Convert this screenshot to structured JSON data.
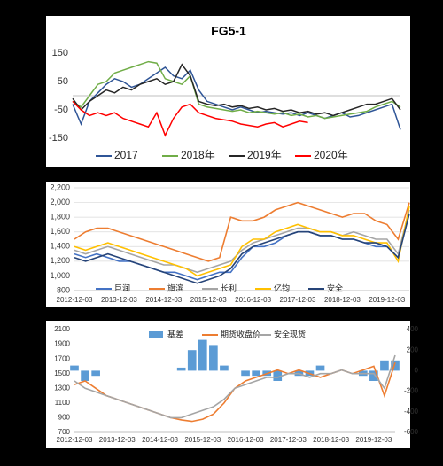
{
  "chart_data": [
    {
      "type": "line",
      "title": "FG5-1",
      "categories": [
        null,
        null,
        null,
        null,
        null,
        null,
        null,
        null,
        null,
        null,
        null,
        null,
        null,
        null,
        null,
        null,
        null,
        null,
        null,
        null,
        null,
        null,
        null,
        null,
        null,
        null,
        null,
        null,
        null,
        null,
        null,
        null,
        null,
        null,
        null,
        null,
        null,
        null,
        null,
        null
      ],
      "ylim": [
        -175,
        175
      ],
      "yticks": [
        150,
        50,
        -50,
        -150
      ],
      "grid": false,
      "legend": "bottom",
      "series": [
        {
          "name": "2017",
          "color": "#2f5597",
          "values": [
            -30,
            -100,
            -20,
            10,
            40,
            60,
            50,
            30,
            40,
            60,
            80,
            100,
            70,
            60,
            90,
            20,
            -20,
            -30,
            -40,
            -50,
            -40,
            -50,
            -60,
            -55,
            -60,
            -65,
            -60,
            -70,
            -60,
            -70,
            -80,
            -70,
            -60,
            -75,
            -70,
            -60,
            -50,
            -40,
            -30,
            -120
          ]
        },
        {
          "name": "2018年",
          "color": "#70ad47",
          "values": [
            -20,
            -40,
            0,
            40,
            50,
            80,
            90,
            100,
            110,
            120,
            115,
            60,
            50,
            40,
            70,
            -30,
            -40,
            -45,
            -50,
            -55,
            -50,
            -60,
            -55,
            -60,
            -65,
            -60,
            -70,
            -65,
            -75,
            -70,
            -80,
            -75,
            -70,
            -65,
            -60,
            -55,
            -40,
            -30,
            -20,
            -40
          ]
        },
        {
          "name": "2019年",
          "color": "#262626",
          "values": [
            -10,
            -50,
            -20,
            0,
            20,
            10,
            30,
            20,
            40,
            50,
            60,
            40,
            50,
            110,
            70,
            -20,
            -30,
            -35,
            -30,
            -40,
            -35,
            -45,
            -40,
            -50,
            -45,
            -55,
            -50,
            -60,
            -55,
            -65,
            -60,
            -70,
            -60,
            -50,
            -40,
            -30,
            -30,
            -20,
            -10,
            -50
          ]
        },
        {
          "name": "2020年",
          "color": "#ff0000",
          "values": [
            -20,
            -50,
            -70,
            -60,
            -70,
            -60,
            -80,
            -90,
            -100,
            -110,
            -60,
            -140,
            -80,
            -40,
            -30,
            -60,
            -70,
            -80,
            -85,
            -90,
            -100,
            -105,
            -110,
            -100,
            -95,
            -110,
            -100,
            -90,
            -95,
            null,
            null,
            null,
            null,
            null,
            null,
            null,
            null,
            null,
            null,
            null
          ]
        }
      ]
    },
    {
      "type": "line",
      "categories": [
        "2012-12-03",
        null,
        null,
        null,
        "2013-12-03",
        null,
        null,
        null,
        "2014-12-03",
        null,
        null,
        null,
        "2015-12-03",
        null,
        null,
        null,
        "2016-12-03",
        null,
        null,
        null,
        "2017-12-03",
        null,
        null,
        null,
        "2018-12-03",
        null,
        null,
        null,
        "2019-12-03",
        null,
        null
      ],
      "ylim": [
        800,
        2200
      ],
      "yticks": [
        {
          "value": 800,
          "label": "800"
        },
        {
          "value": 1000,
          "label": "1,000"
        },
        {
          "value": 1200,
          "label": "1,200"
        },
        {
          "value": 1400,
          "label": "1,400"
        },
        {
          "value": 1600,
          "label": "1,600"
        },
        {
          "value": 1800,
          "label": "1,800"
        },
        {
          "value": 2000,
          "label": "2,000"
        },
        {
          "value": 2200,
          "label": "2,200"
        }
      ],
      "grid": true,
      "legend": "bottom",
      "series": [
        {
          "name": "巨润",
          "color": "#4472c4",
          "values": [
            1300,
            1250,
            1300,
            1250,
            1200,
            1200,
            1150,
            1100,
            1050,
            1050,
            1000,
            950,
            1000,
            1050,
            1050,
            1250,
            1400,
            1400,
            1450,
            1550,
            1600,
            1600,
            1550,
            1550,
            1500,
            1500,
            1450,
            1400,
            1400,
            1250,
            1850
          ]
        },
        {
          "name": "旗滨",
          "color": "#ed7d31",
          "values": [
            1500,
            1600,
            1650,
            1650,
            1600,
            1550,
            1500,
            1450,
            1400,
            1350,
            1300,
            1250,
            1200,
            1250,
            1800,
            1750,
            1750,
            1800,
            1900,
            1950,
            2000,
            1950,
            1900,
            1850,
            1800,
            1850,
            1850,
            1750,
            1700,
            1500,
            2000
          ]
        },
        {
          "name": "长利",
          "color": "#a5a5a5",
          "values": [
            1350,
            1300,
            1350,
            1400,
            1350,
            1300,
            1250,
            1200,
            1150,
            1150,
            1100,
            1050,
            1100,
            1150,
            1200,
            1350,
            1450,
            1500,
            1550,
            1600,
            1650,
            1650,
            1600,
            1600,
            1550,
            1600,
            1550,
            1500,
            1500,
            1300,
            1900
          ]
        },
        {
          "name": "亿钧",
          "color": "#ffc000",
          "values": [
            1400,
            1350,
            1400,
            1450,
            1400,
            1350,
            1300,
            1250,
            1200,
            1150,
            1100,
            1000,
            1050,
            1100,
            1150,
            1400,
            1500,
            1500,
            1600,
            1650,
            1700,
            1650,
            1600,
            1600,
            1550,
            1550,
            1500,
            1450,
            1450,
            1200,
            1950
          ]
        },
        {
          "name": "安全",
          "color": "#264478",
          "values": [
            1250,
            1200,
            1250,
            1300,
            1250,
            1200,
            1150,
            1100,
            1050,
            1000,
            950,
            900,
            950,
            1000,
            1100,
            1300,
            1400,
            1450,
            1500,
            1550,
            1600,
            1600,
            1550,
            1550,
            1500,
            1500,
            1450,
            1450,
            1400,
            1250,
            1850
          ]
        }
      ]
    },
    {
      "type": "combo",
      "categories": [
        "2012-12-03",
        null,
        null,
        null,
        "2013-12-03",
        null,
        null,
        null,
        "2014-12-03",
        null,
        null,
        null,
        "2015-12-03",
        null,
        null,
        null,
        "2016-12-03",
        null,
        null,
        null,
        "2017-12-03",
        null,
        null,
        null,
        "2018-12-03",
        null,
        null,
        null,
        "2019-12-03",
        null,
        null
      ],
      "ylim": [
        700,
        2100
      ],
      "yticks": [
        700,
        900,
        1100,
        1300,
        1500,
        1700,
        1900,
        2100
      ],
      "y2lim": [
        -600,
        400
      ],
      "y2ticks": [
        -600,
        -400,
        -200,
        0,
        200,
        400
      ],
      "grid": false,
      "legend": "top",
      "series": [
        {
          "name": "基差",
          "color": "#5b9bd5",
          "kind": "bar",
          "axis": "y2",
          "values": [
            50,
            -100,
            -50,
            0,
            0,
            0,
            0,
            0,
            0,
            0,
            30,
            200,
            300,
            250,
            50,
            0,
            -50,
            -50,
            -50,
            -100,
            0,
            -50,
            -50,
            50,
            0,
            0,
            0,
            -50,
            -100,
            100,
            100
          ]
        },
        {
          "name": "期货收盘价",
          "color": "#ed7d31",
          "kind": "line",
          "values": [
            1350,
            1400,
            1300,
            1200,
            1150,
            1100,
            1050,
            1000,
            950,
            900,
            870,
            850,
            880,
            950,
            1100,
            1300,
            1400,
            1450,
            1500,
            1550,
            1500,
            1550,
            1500,
            1450,
            1500,
            1550,
            1500,
            1550,
            1600,
            1200,
            1650
          ]
        },
        {
          "name": "安全现货",
          "color": "#a5a5a5",
          "kind": "line",
          "values": [
            1400,
            1300,
            1250,
            1200,
            1150,
            1100,
            1050,
            1000,
            950,
            900,
            900,
            950,
            1000,
            1050,
            1150,
            1300,
            1350,
            1400,
            1450,
            1450,
            1500,
            1500,
            1450,
            1500,
            1500,
            1550,
            1500,
            1500,
            1500,
            1300,
            1750
          ]
        }
      ]
    }
  ]
}
